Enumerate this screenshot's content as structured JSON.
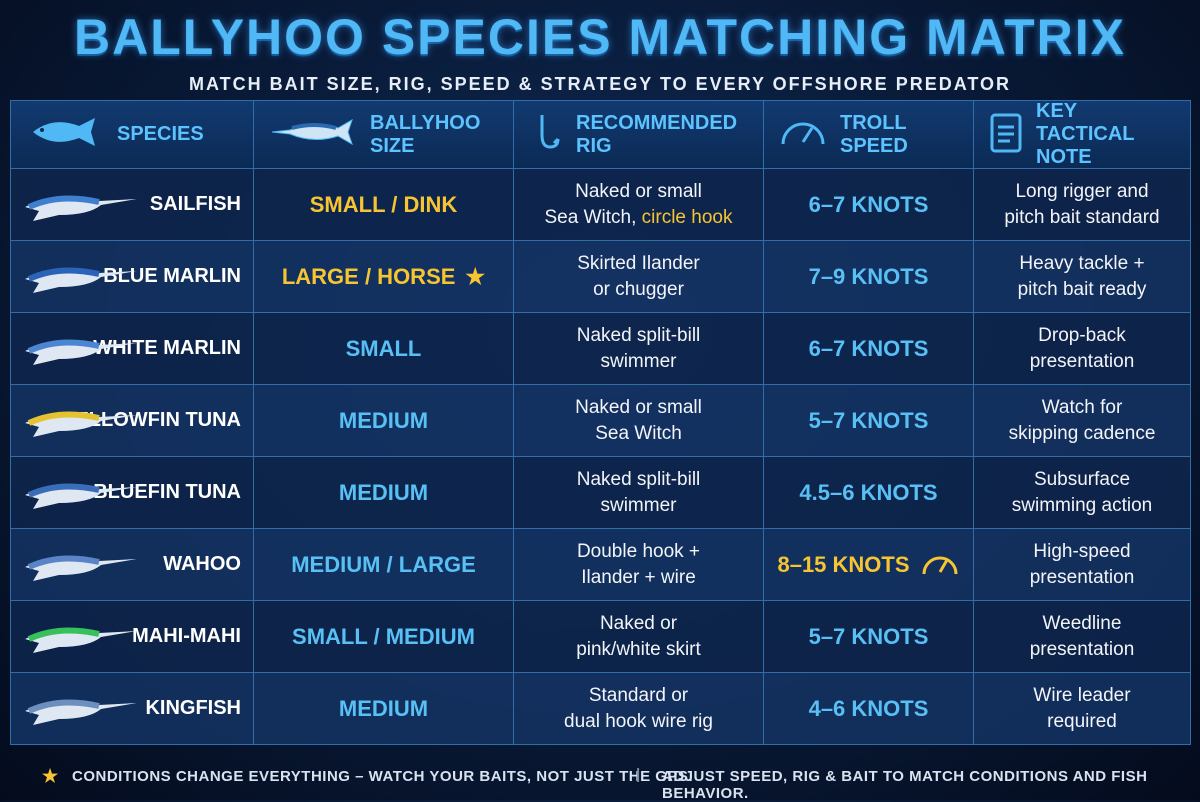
{
  "header": {
    "title": "BALLYHOO SPECIES MATCHING MATRIX",
    "subtitle": "MATCH BAIT SIZE, RIG, SPEED & STRATEGY TO EVERY OFFSHORE PREDATOR"
  },
  "table": {
    "columns": [
      "SPECIES",
      "BALLYHOO SIZE",
      "RECOMMENDED RIG",
      "TROLL SPEED",
      "KEY TACTICAL NOTE"
    ],
    "rows": [
      {
        "species": "SAILFISH",
        "size": "SMALL / DINK",
        "size_accent": true,
        "rig": [
          [
            {
              "text": "Naked or small"
            }
          ],
          [
            {
              "text": "Sea Witch, "
            },
            {
              "text": "circle hook",
              "accent": true
            }
          ]
        ],
        "speed": "6–7 KNOTS",
        "note": [
          "Long rigger and",
          "pitch bait standard"
        ]
      },
      {
        "species": "BLUE MARLIN",
        "size": "LARGE / HORSE",
        "size_accent": true,
        "size_star": true,
        "rig": [
          [
            {
              "text": "Skirted Ilander"
            }
          ],
          [
            {
              "text": "or chugger"
            }
          ]
        ],
        "speed": "7–9 KNOTS",
        "note": [
          "Heavy tackle +",
          "pitch bait ready"
        ]
      },
      {
        "species": "WHITE MARLIN",
        "size": "SMALL",
        "rig": [
          [
            {
              "text": "Naked split-bill"
            }
          ],
          [
            {
              "text": "swimmer"
            }
          ]
        ],
        "speed": "6–7 KNOTS",
        "note": [
          "Drop-back",
          "presentation"
        ]
      },
      {
        "species": "YELLOWFIN TUNA",
        "size": "MEDIUM",
        "rig": [
          [
            {
              "text": "Naked or small"
            }
          ],
          [
            {
              "text": "Sea Witch"
            }
          ]
        ],
        "speed": "5–7 KNOTS",
        "note": [
          "Watch for",
          "skipping cadence"
        ]
      },
      {
        "species": "BLUEFIN TUNA",
        "size": "MEDIUM",
        "rig": [
          [
            {
              "text": "Naked split-bill"
            }
          ],
          [
            {
              "text": "swimmer"
            }
          ]
        ],
        "speed": "4.5–6 KNOTS",
        "note": [
          "Subsurface",
          "swimming action"
        ]
      },
      {
        "species": "WAHOO",
        "size": "MEDIUM / LARGE",
        "rig": [
          [
            {
              "text": "Double hook +"
            }
          ],
          [
            {
              "text": "Ilander + wire"
            }
          ]
        ],
        "speed": "8–15 KNOTS",
        "speed_accent": true,
        "note": [
          "High-speed",
          "presentation"
        ]
      },
      {
        "species": "MAHI-MAHI",
        "size": "SMALL / MEDIUM",
        "rig": [
          [
            {
              "text": "Naked or"
            }
          ],
          [
            {
              "text": "pink/white skirt"
            }
          ]
        ],
        "speed": "5–7 KNOTS",
        "note": [
          "Weedline",
          "presentation"
        ]
      },
      {
        "species": "KINGFISH",
        "size": "MEDIUM",
        "rig": [
          [
            {
              "text": "Standard or"
            }
          ],
          [
            {
              "text": "dual hook wire rig"
            }
          ]
        ],
        "speed": "4–6 KNOTS",
        "note": [
          "Wire leader",
          "required"
        ]
      }
    ]
  },
  "footer": {
    "left": "CONDITIONS CHANGE EVERYTHING – WATCH YOUR BAITS, NOT JUST THE GPS.",
    "right": "ADJUST SPEED, RIG & BAIT TO MATCH CONDITIONS AND FISH BEHAVIOR."
  }
}
